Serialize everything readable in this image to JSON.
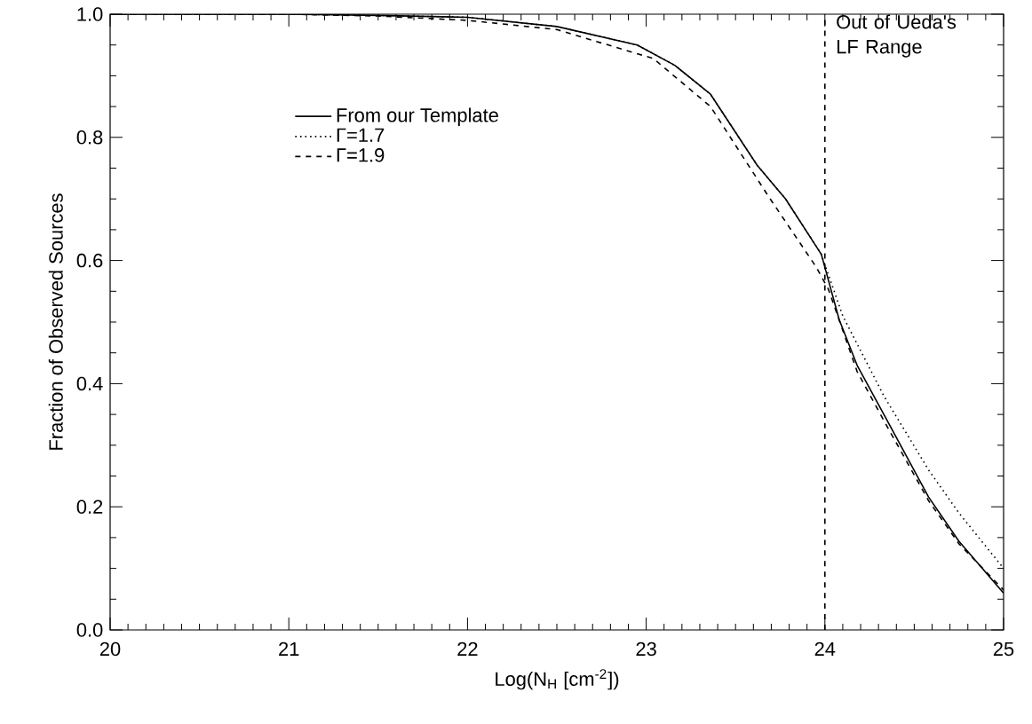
{
  "chart_data": {
    "type": "line",
    "xlabel": "Log(N$_{H}$ [cm$^{-2}$])",
    "ylabel": "Fraction of Observed Sources",
    "xlim": [
      20,
      25
    ],
    "ylim": [
      0,
      1
    ],
    "xticks": [
      20,
      21,
      22,
      23,
      24,
      25
    ],
    "yticks": [
      {
        "value": 0,
        "label": "0.0"
      },
      {
        "value": 0.2,
        "label": "0.2"
      },
      {
        "value": 0.4,
        "label": "0.4"
      },
      {
        "value": 0.6,
        "label": "0.6"
      },
      {
        "value": 0.8,
        "label": "0.8"
      },
      {
        "value": 1,
        "label": "1.0"
      }
    ],
    "legend": "top left",
    "marker": "none",
    "series": [
      {
        "name": "From our Template",
        "color": "#000000",
        "line_style": "solid",
        "x": [
          20,
          20.5,
          21,
          21.5,
          22,
          22.5,
          22.95,
          23.16,
          23.36,
          23.62,
          23.78,
          23.98,
          24.08,
          24.18,
          24.33,
          24.58,
          24.75,
          25
        ],
        "values": [
          1.0,
          1.0,
          1.0,
          0.998,
          0.995,
          0.98,
          0.95,
          0.917,
          0.87,
          0.755,
          0.7,
          0.61,
          0.504,
          0.43,
          0.35,
          0.216,
          0.144,
          0.06
        ]
      },
      {
        "name": "Γ=1.7",
        "color": "#000000",
        "line_style": "dotted",
        "x": [
          20,
          20.5,
          21,
          21.5,
          22,
          22.5,
          22.95,
          23.16,
          23.36,
          23.62,
          23.78,
          23.98,
          24.1,
          24.33,
          24.58,
          24.75,
          25
        ],
        "values": [
          1.0,
          1.0,
          1.0,
          0.998,
          0.995,
          0.98,
          0.95,
          0.917,
          0.87,
          0.755,
          0.7,
          0.61,
          0.51,
          0.38,
          0.26,
          0.19,
          0.1
        ]
      },
      {
        "name": "Γ=1.9",
        "color": "#000000",
        "line_style": "dashed",
        "x": [
          20,
          20.5,
          21,
          21.5,
          22,
          22.5,
          23.04,
          23.36,
          23.68,
          23.95,
          24.02,
          24.18,
          24.33,
          24.58,
          24.75,
          25
        ],
        "values": [
          1.0,
          1.0,
          1.0,
          0.997,
          0.99,
          0.975,
          0.928,
          0.85,
          0.706,
          0.59,
          0.553,
          0.42,
          0.34,
          0.21,
          0.14,
          0.065
        ]
      }
    ],
    "ref_lines": [
      {
        "axis": "x",
        "value": 24,
        "label": "Out of Ueda's LF Range",
        "line_style": "dashed",
        "color": "#000000"
      }
    ]
  }
}
